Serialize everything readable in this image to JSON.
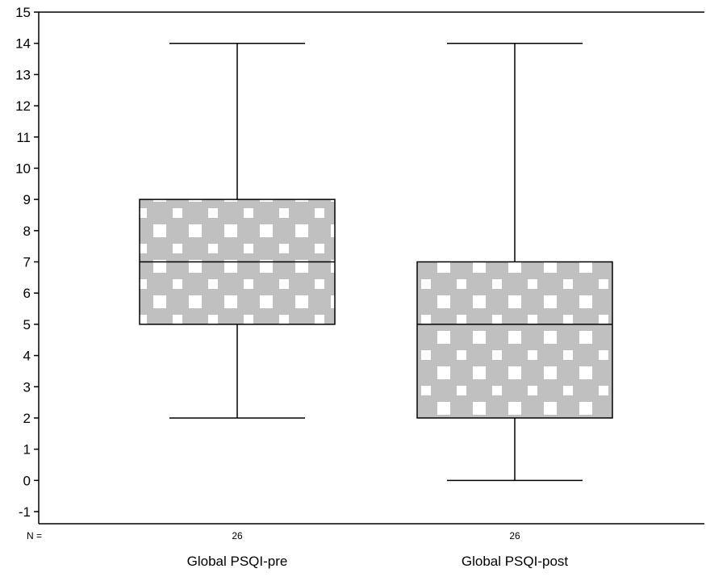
{
  "chart_data": {
    "type": "box",
    "title": "",
    "xlabel": "",
    "ylabel": "",
    "ylim": [
      -1,
      15
    ],
    "yticks": [
      -1,
      0,
      1,
      2,
      3,
      4,
      5,
      6,
      7,
      8,
      9,
      10,
      11,
      12,
      13,
      14,
      15
    ],
    "grid": false,
    "n_prefix": "N =",
    "categories": [
      "Global PSQI-pre",
      "Global PSQI-post"
    ],
    "n": [
      "26",
      "26"
    ],
    "boxes": [
      {
        "min": 2,
        "q1": 5,
        "median": 7,
        "q3": 9,
        "max": 14
      },
      {
        "min": 0,
        "q1": 2,
        "median": 5,
        "q3": 7,
        "max": 14
      }
    ],
    "colors": {
      "box_fill": "#c0c0c0",
      "pattern_light": "#ffffff",
      "line": "#000000"
    }
  }
}
